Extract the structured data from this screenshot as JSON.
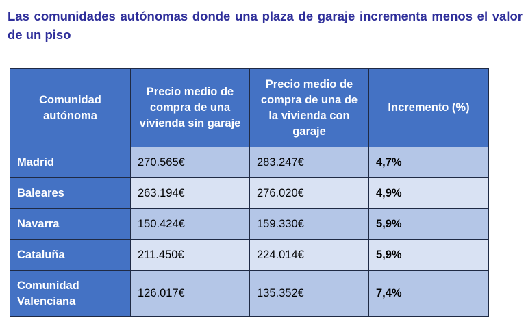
{
  "title": "Las comunidades autónomas donde una plaza de garaje incrementa menos el valor de un piso",
  "table": {
    "headers": [
      "Comunidad autónoma",
      "Precio medio de compra de una vivienda sin garaje",
      "Precio medio de compra de una de la vivienda con garaje",
      "Incremento (%)"
    ],
    "rows": [
      {
        "region": "Madrid",
        "sin_garaje": "270.565€",
        "con_garaje": "283.247€",
        "incremento": "4,7%"
      },
      {
        "region": "Baleares",
        "sin_garaje": "263.194€",
        "con_garaje": "276.020€",
        "incremento": "4,9%"
      },
      {
        "region": "Navarra",
        "sin_garaje": "150.424€",
        "con_garaje": "159.330€",
        "incremento": "5,9%"
      },
      {
        "region": "Cataluña",
        "sin_garaje": "211.450€",
        "con_garaje": "224.014€",
        "incremento": "5,9%"
      },
      {
        "region": "Comunidad Valenciana",
        "sin_garaje": "126.017€",
        "con_garaje": "135.352€",
        "incremento": "7,4%"
      }
    ]
  },
  "colors": {
    "title": "#2e2e9a",
    "header_bg": "#4472c4",
    "row_odd": "#b4c6e7",
    "row_even": "#d9e2f3"
  }
}
